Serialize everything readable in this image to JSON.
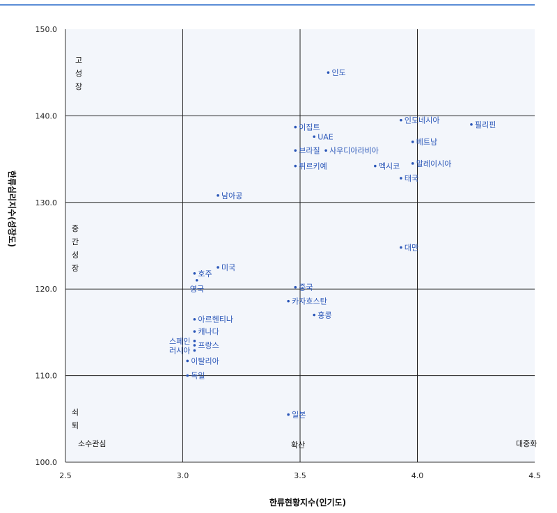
{
  "chart_data": {
    "type": "scatter",
    "xlabel": "한류현황지수(인기도)",
    "ylabel": "한류심리지수(성장도)",
    "xlim": [
      2.5,
      4.5
    ],
    "ylim": [
      100.0,
      150.0
    ],
    "x_ticks": [
      "2.5",
      "3.0",
      "3.5",
      "4.0",
      "4.5"
    ],
    "y_ticks": [
      "100.0",
      "110.0",
      "120.0",
      "130.0",
      "140.0",
      "150.0"
    ],
    "grid": true,
    "point_color": "#2a56b8",
    "background": "#f3f6fb",
    "points": [
      {
        "label": "인도",
        "x": 3.62,
        "y": 145.0
      },
      {
        "label": "인도네시아",
        "x": 3.93,
        "y": 139.5
      },
      {
        "label": "필리핀",
        "x": 4.23,
        "y": 139.0
      },
      {
        "label": "이집트",
        "x": 3.48,
        "y": 138.7
      },
      {
        "label": "UAE",
        "x": 3.56,
        "y": 137.6
      },
      {
        "label": "베트남",
        "x": 3.98,
        "y": 137.0
      },
      {
        "label": "브라질",
        "x": 3.48,
        "y": 136.0
      },
      {
        "label": "사우디아라비아",
        "x": 3.61,
        "y": 136.0
      },
      {
        "label": "말레이시아",
        "x": 3.98,
        "y": 134.5
      },
      {
        "label": "튀르키예",
        "x": 3.48,
        "y": 134.2
      },
      {
        "label": "멕시코",
        "x": 3.82,
        "y": 134.2
      },
      {
        "label": "태국",
        "x": 3.93,
        "y": 132.8
      },
      {
        "label": "남아공",
        "x": 3.15,
        "y": 130.8
      },
      {
        "label": "대만",
        "x": 3.93,
        "y": 124.8
      },
      {
        "label": "미국",
        "x": 3.15,
        "y": 122.5
      },
      {
        "label": "호주",
        "x": 3.05,
        "y": 121.8
      },
      {
        "label": "영국",
        "x": 3.06,
        "y": 121.0
      },
      {
        "label": "중국",
        "x": 3.48,
        "y": 120.2
      },
      {
        "label": "카자흐스탄",
        "x": 3.45,
        "y": 118.6
      },
      {
        "label": "홍콩",
        "x": 3.56,
        "y": 117.0
      },
      {
        "label": "아르헨티나",
        "x": 3.05,
        "y": 116.5
      },
      {
        "label": "캐나다",
        "x": 3.05,
        "y": 115.1
      },
      {
        "label": "스페인",
        "x": 3.05,
        "y": 114.0
      },
      {
        "label": "프랑스",
        "x": 3.05,
        "y": 113.5
      },
      {
        "label": "러시아",
        "x": 3.05,
        "y": 112.9
      },
      {
        "label": "이탈리아",
        "x": 3.02,
        "y": 111.7
      },
      {
        "label": "독일",
        "x": 3.02,
        "y": 110.0
      },
      {
        "label": "일본",
        "x": 3.45,
        "y": 105.5
      }
    ],
    "regions": {
      "high_growth": "고성장",
      "mid_growth": "중간성장",
      "decline": "쇠퇴",
      "minor_interest": "소수관심",
      "spread": "확산",
      "popularization": "대중화"
    }
  }
}
